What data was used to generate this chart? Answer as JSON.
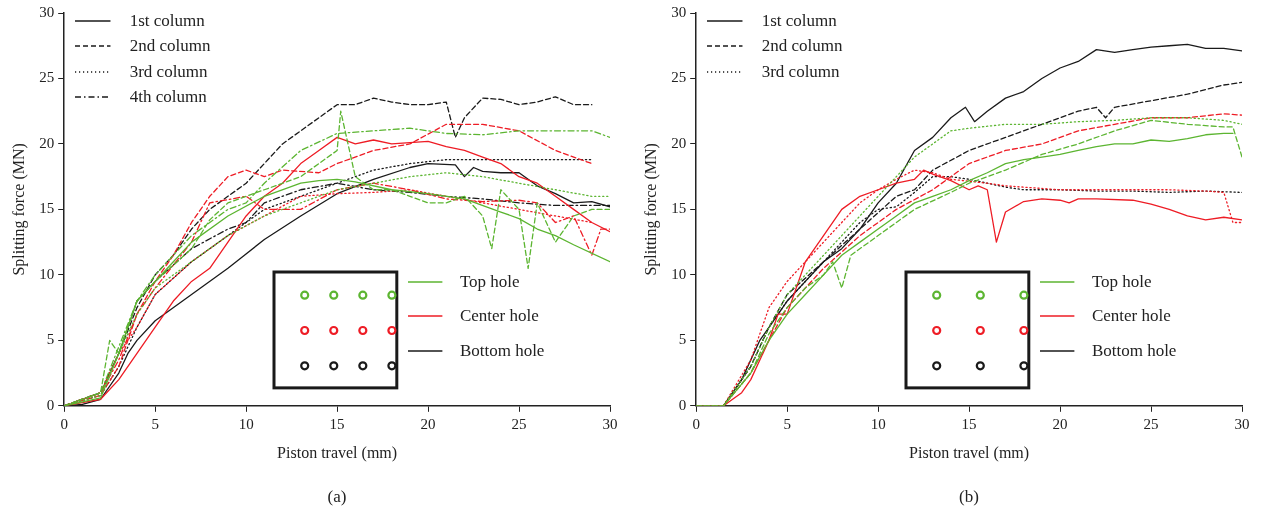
{
  "chart_data": [
    {
      "type": "line",
      "xlabel": "Piston travel (mm)",
      "ylabel": "Splitting force (MN)",
      "xlim": [
        0,
        30
      ],
      "ylim": [
        0,
        30
      ],
      "xticks": [
        0,
        5,
        10,
        15,
        20,
        25,
        30
      ],
      "yticks": [
        0,
        5,
        10,
        15,
        20,
        25,
        30
      ],
      "grid": false,
      "annotations": [
        "1st column",
        "2nd column",
        "3rd column",
        "4th column",
        "Top hole",
        "Center hole",
        "Bottom hole",
        "(a)"
      ],
      "series": [
        {
          "color": "#5cb531",
          "line_style": "solid",
          "x": [
            0,
            2,
            3,
            4,
            5,
            6,
            7,
            9,
            11,
            13,
            14,
            15,
            16,
            18,
            20,
            22,
            24,
            25,
            26,
            27,
            28,
            30
          ],
          "values": [
            0,
            0.6,
            4,
            8,
            9.5,
            11,
            12.5,
            14.5,
            16,
            17,
            17.2,
            17.3,
            17.1,
            16.5,
            16.2,
            15.8,
            14.8,
            14.3,
            13.5,
            13,
            12.3,
            11
          ]
        },
        {
          "color": "#5cb531",
          "line_style": "dashed",
          "x": [
            0,
            2,
            2.5,
            3,
            4,
            5,
            7,
            8,
            9,
            11,
            13,
            15,
            15.2,
            16,
            17,
            18,
            19,
            20,
            21,
            22,
            23,
            23.5,
            24,
            25,
            25.5,
            26,
            27,
            28,
            29,
            30
          ],
          "values": [
            0,
            1,
            5,
            4,
            8,
            9.5,
            12,
            14.2,
            15.5,
            16.5,
            17.5,
            19.5,
            22.5,
            17.5,
            16.5,
            16.5,
            16,
            15.5,
            15.5,
            16,
            14.5,
            12,
            16.5,
            15,
            10.5,
            15.5,
            12.5,
            14.5,
            15,
            15
          ]
        },
        {
          "color": "#5cb531",
          "line_style": "dotted",
          "x": [
            0,
            2,
            3,
            4,
            5,
            7,
            9,
            11,
            13,
            15,
            17,
            19,
            21,
            23,
            25,
            27,
            29,
            30
          ],
          "values": [
            0,
            0.8,
            4,
            7,
            9,
            11,
            13,
            14.5,
            15.5,
            16.5,
            17,
            17.5,
            17.8,
            17.5,
            17,
            16.5,
            16,
            16
          ]
        },
        {
          "color": "#5cb531",
          "line_style": "dashdot",
          "x": [
            0,
            2,
            3,
            4,
            5,
            7,
            9,
            10,
            11,
            13,
            15,
            17,
            19,
            21,
            23,
            25,
            27,
            29,
            30
          ],
          "values": [
            0,
            1,
            4.5,
            8,
            10,
            13,
            15,
            15.5,
            17,
            19.5,
            20.8,
            21,
            21.2,
            20.8,
            20.7,
            21,
            21,
            21,
            20.5
          ]
        },
        {
          "color": "#ee1c25",
          "line_style": "solid",
          "x": [
            0,
            2,
            3,
            4,
            5,
            6,
            7,
            8,
            9,
            10,
            11,
            12,
            13,
            14,
            15,
            16,
            17,
            18,
            20,
            21,
            22,
            23,
            24,
            25,
            26,
            27,
            28,
            29,
            30
          ],
          "values": [
            0,
            0.5,
            2,
            4,
            6,
            8,
            9.5,
            10.5,
            12.5,
            14.5,
            16,
            17,
            18.5,
            19.5,
            20.5,
            20,
            20.3,
            20,
            20.2,
            19.8,
            19.5,
            19,
            18.5,
            17.5,
            17,
            16,
            15,
            14,
            13.3
          ]
        },
        {
          "color": "#ee1c25",
          "line_style": "dashed",
          "x": [
            0,
            2,
            3,
            4,
            5,
            6,
            7,
            8,
            9,
            10,
            11,
            12,
            14,
            15,
            17,
            19,
            21,
            23,
            25,
            27,
            29
          ],
          "values": [
            0,
            0.8,
            3,
            7,
            9.5,
            11.5,
            14,
            16,
            17.5,
            18,
            17.5,
            18,
            17.8,
            18.5,
            19.5,
            20,
            21.5,
            21.5,
            21,
            19.5,
            18.5
          ]
        },
        {
          "color": "#ee1c25",
          "line_style": "dotted",
          "x": [
            0,
            2,
            3,
            4,
            5,
            7,
            9,
            11,
            13,
            15,
            17,
            19,
            21,
            23,
            25,
            27,
            29
          ],
          "values": [
            0,
            1,
            4,
            6,
            8.5,
            11,
            13,
            14.5,
            16,
            16.2,
            16.3,
            16.5,
            16,
            15.5,
            15,
            14.5,
            14
          ]
        },
        {
          "color": "#ee1c25",
          "line_style": "dashdot",
          "x": [
            0,
            2,
            3,
            4,
            5,
            7,
            8,
            10,
            11,
            13,
            15,
            17,
            19,
            21,
            23,
            25,
            26,
            27,
            28,
            29,
            29.5,
            30
          ],
          "values": [
            0,
            1,
            3.5,
            7,
            9,
            12.5,
            15.5,
            16,
            15,
            15,
            16.5,
            17,
            16.5,
            15.8,
            15.6,
            15.7,
            15.5,
            14,
            14.5,
            11.5,
            13.5,
            13.5
          ]
        },
        {
          "color": "#1a1a1a",
          "line_style": "solid",
          "x": [
            0,
            1,
            2,
            3,
            3.5,
            4,
            5,
            7,
            9,
            11,
            13,
            15,
            17,
            19,
            20,
            21.5,
            22,
            22.5,
            23,
            24,
            25,
            26,
            27,
            28,
            29,
            30
          ],
          "values": [
            0,
            0.1,
            0.5,
            2.5,
            4,
            5,
            6.5,
            8.5,
            10.5,
            12.7,
            14.5,
            16.2,
            17.3,
            18.2,
            18.5,
            18.4,
            17.5,
            18.2,
            17.9,
            17.8,
            17.8,
            16.8,
            16.2,
            15.5,
            15.6,
            15.2
          ]
        },
        {
          "color": "#1a1a1a",
          "line_style": "dashed",
          "x": [
            0,
            2,
            3,
            4,
            5,
            6,
            7,
            8,
            10,
            11,
            12,
            13,
            14,
            15,
            16,
            17,
            18,
            19,
            20,
            21,
            21.5,
            22,
            23,
            24,
            25,
            26,
            27,
            28,
            29
          ],
          "values": [
            0,
            1,
            4,
            7.5,
            10,
            11.5,
            13.5,
            15,
            17,
            18.5,
            20,
            21,
            22,
            23,
            23,
            23.5,
            23.2,
            23,
            23,
            23.2,
            20.5,
            22,
            23.5,
            23.4,
            23,
            23.2,
            23.6,
            23,
            23
          ]
        },
        {
          "color": "#1a1a1a",
          "line_style": "dotted",
          "x": [
            0,
            2,
            3,
            4,
            5,
            7,
            9,
            11,
            13,
            15,
            17,
            19,
            21,
            23,
            25,
            27,
            29
          ],
          "values": [
            0,
            0.8,
            3,
            6,
            8.5,
            11,
            13,
            15,
            16,
            17,
            18,
            18.5,
            18.8,
            18.8,
            18.8,
            18.8,
            18.8
          ]
        },
        {
          "color": "#1a1a1a",
          "line_style": "dashdot",
          "x": [
            0,
            2,
            3,
            4,
            5,
            7,
            9,
            10,
            11,
            13,
            15,
            17,
            19,
            21,
            23,
            25,
            27,
            29,
            30
          ],
          "values": [
            0,
            1,
            4,
            8,
            9.5,
            12,
            13.5,
            14,
            15.5,
            16.5,
            17,
            16.5,
            16.3,
            16,
            15.8,
            15.5,
            15.3,
            15.3,
            15.3
          ]
        }
      ]
    },
    {
      "type": "line",
      "xlabel": "Piston travel (mm)",
      "ylabel": "Splitting force (MN)",
      "xlim": [
        0,
        30
      ],
      "ylim": [
        0,
        30
      ],
      "xticks": [
        0,
        5,
        10,
        15,
        20,
        25,
        30
      ],
      "yticks": [
        0,
        5,
        10,
        15,
        20,
        25,
        30
      ],
      "grid": false,
      "annotations": [
        "1st column",
        "2nd column",
        "3rd column",
        "Top hole",
        "Center hole",
        "Bottom hole",
        "(b)"
      ],
      "series": [
        {
          "color": "#5cb531",
          "line_style": "solid",
          "x": [
            0,
            1.5,
            3,
            4,
            5,
            6,
            7,
            8,
            9,
            10,
            11,
            12,
            13,
            14,
            15,
            16,
            17,
            18,
            19,
            20,
            21,
            22,
            23,
            24,
            25,
            26,
            27,
            28,
            29,
            29.5
          ],
          "values": [
            0,
            0,
            2.5,
            5,
            7,
            8.5,
            10,
            11.5,
            12.5,
            13.5,
            14.5,
            15.5,
            16,
            16.5,
            17.2,
            17.8,
            18.5,
            18.8,
            19,
            19.2,
            19.5,
            19.8,
            20,
            20,
            20.3,
            20.2,
            20.4,
            20.7,
            20.8,
            20.8
          ]
        },
        {
          "color": "#5cb531",
          "line_style": "dashed",
          "x": [
            0,
            1.5,
            3,
            4,
            5,
            6,
            7,
            7.5,
            8,
            8.5,
            10,
            12,
            14,
            15,
            17,
            19,
            21,
            23,
            25,
            27,
            29,
            29.5,
            30
          ],
          "values": [
            0,
            0,
            2.5,
            5.5,
            7.5,
            9,
            10,
            11,
            9,
            11.5,
            13,
            15,
            16.3,
            17,
            18,
            19.2,
            20,
            21,
            21.8,
            21.5,
            21.3,
            21.3,
            19
          ]
        },
        {
          "color": "#5cb531",
          "line_style": "dotted",
          "x": [
            0,
            1.5,
            3,
            4,
            5,
            7,
            9,
            10,
            11,
            12,
            13,
            14,
            15,
            17,
            19,
            21,
            23,
            25,
            27,
            29,
            30
          ],
          "values": [
            0,
            0,
            3,
            6,
            8.5,
            11.5,
            14.5,
            16,
            17.5,
            19,
            20,
            21,
            21.2,
            21.5,
            21.5,
            21.7,
            21.8,
            22,
            22,
            21.8,
            21.5
          ]
        },
        {
          "color": "#ee1c25",
          "line_style": "solid",
          "x": [
            0,
            1.5,
            2.5,
            3,
            4,
            4.5,
            5,
            6,
            7,
            8,
            9,
            10,
            11,
            12,
            12.5,
            13,
            14,
            15,
            15.5,
            16,
            16.5,
            17,
            18,
            19,
            20,
            20.5,
            21,
            22,
            24,
            25,
            26,
            27,
            28,
            29,
            30
          ],
          "values": [
            0,
            0,
            1,
            2,
            5,
            7,
            7,
            11,
            13,
            15,
            16,
            16.5,
            17,
            17.3,
            18,
            17.7,
            17.2,
            16.5,
            16.8,
            16.5,
            12.5,
            14.8,
            15.6,
            15.8,
            15.7,
            15.5,
            15.8,
            15.8,
            15.7,
            15.4,
            15,
            14.5,
            14.2,
            14.4,
            14.2
          ]
        },
        {
          "color": "#ee1c25",
          "line_style": "dashed",
          "x": [
            0,
            1.5,
            3,
            4,
            5,
            7,
            9,
            11,
            13,
            15,
            17,
            19,
            21,
            23,
            25,
            27,
            29,
            30
          ],
          "values": [
            0,
            0,
            2.5,
            5,
            7.5,
            10.5,
            13,
            15,
            16.5,
            18.5,
            19.5,
            20,
            21,
            21.5,
            22,
            22,
            22.3,
            22.2
          ]
        },
        {
          "color": "#ee1c25",
          "line_style": "dotted",
          "x": [
            0,
            1.5,
            3,
            4,
            5,
            7,
            9,
            10,
            11,
            12,
            13,
            14,
            16,
            17,
            18,
            20,
            22,
            24,
            26,
            28,
            29,
            29.5,
            30
          ],
          "values": [
            0,
            0,
            3.5,
            7.5,
            9.5,
            12.5,
            15.5,
            16.5,
            17.3,
            18,
            17.8,
            17.3,
            17,
            16.8,
            16.7,
            16.5,
            16.5,
            16.5,
            16.5,
            16.4,
            16.3,
            14,
            14
          ]
        },
        {
          "color": "#1a1a1a",
          "line_style": "solid",
          "x": [
            0,
            1.5,
            2.5,
            3.5,
            5,
            6,
            7,
            8,
            9,
            10,
            11,
            12,
            13,
            14,
            14.8,
            15.3,
            16,
            17,
            18,
            19,
            20,
            21,
            22,
            23,
            24,
            25,
            26,
            27,
            28,
            29,
            30
          ],
          "values": [
            0,
            0,
            2,
            5,
            8,
            9.5,
            11,
            12,
            13.5,
            15.5,
            17,
            19.5,
            20.5,
            22,
            22.8,
            21.7,
            22.5,
            23.5,
            24,
            25,
            25.8,
            26.3,
            27.2,
            27,
            27.2,
            27.4,
            27.5,
            27.6,
            27.3,
            27.3,
            27.1
          ]
        },
        {
          "color": "#1a1a1a",
          "line_style": "dashed",
          "x": [
            0,
            1.5,
            3,
            4,
            5,
            7,
            9,
            11,
            12,
            13,
            15,
            17,
            19,
            21,
            22,
            22.5,
            23,
            25,
            27,
            29,
            30
          ],
          "values": [
            0,
            0,
            3,
            6,
            8.5,
            11,
            13.5,
            16,
            16.5,
            18,
            19.5,
            20.5,
            21.5,
            22.5,
            22.8,
            22,
            22.8,
            23.3,
            23.8,
            24.5,
            24.7
          ]
        },
        {
          "color": "#1a1a1a",
          "line_style": "dotted",
          "x": [
            0,
            1.5,
            3,
            4,
            5,
            7,
            9,
            10,
            11,
            12,
            13,
            14,
            15,
            16,
            17,
            18,
            20,
            22,
            24,
            26,
            28,
            30
          ],
          "values": [
            0,
            0,
            3,
            6,
            8,
            11,
            14,
            15,
            15.2,
            16.3,
            17.5,
            17.5,
            17.3,
            17,
            16.7,
            16.5,
            16.5,
            16.4,
            16.4,
            16.3,
            16.4,
            16.3
          ]
        }
      ]
    }
  ]
}
